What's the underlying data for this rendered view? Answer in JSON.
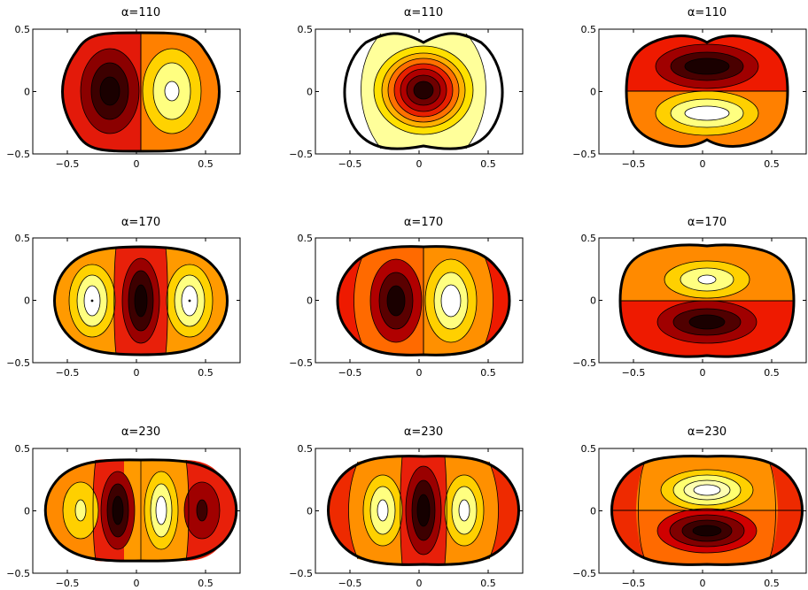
{
  "figure": {
    "panels": [
      {
        "id": "r1c1",
        "title": "α=110"
      },
      {
        "id": "r1c2",
        "title": "α=110"
      },
      {
        "id": "r1c3",
        "title": "α=110"
      },
      {
        "id": "r2c1",
        "title": "α=170"
      },
      {
        "id": "r2c2",
        "title": "α=170"
      },
      {
        "id": "r2c3",
        "title": "α=170"
      },
      {
        "id": "r3c1",
        "title": "α=230"
      },
      {
        "id": "r3c2",
        "title": "α=230"
      },
      {
        "id": "r3c3",
        "title": "α=230"
      }
    ]
  },
  "chart_data": [
    {
      "type": "heatmap",
      "title": "α=110",
      "xticks": [
        "−0.5",
        "0",
        "0.5"
      ],
      "yticks": [
        "0.5",
        "0",
        "−0.5"
      ],
      "xlim": [
        -0.75,
        0.75
      ],
      "ylim": [
        -0.5,
        0.5
      ],
      "colormap": "hot",
      "lobes": [
        {
          "x": -0.25,
          "y": 0,
          "sign": -1
        },
        {
          "x": 0.25,
          "y": 0,
          "sign": 1
        }
      ]
    },
    {
      "type": "heatmap",
      "title": "α=110",
      "xticks": [
        "−0.5",
        "0",
        "0.5"
      ],
      "yticks": [
        "0.5",
        "0",
        "−0.5"
      ],
      "xlim": [
        -0.75,
        0.75
      ],
      "ylim": [
        -0.5,
        0.5
      ],
      "colormap": "hot",
      "lobes": [
        {
          "x": 0,
          "y": 0,
          "sign": -1
        }
      ]
    },
    {
      "type": "heatmap",
      "title": "α=110",
      "xticks": [
        "−0.5",
        "0",
        "0.5"
      ],
      "yticks": [
        "0.5",
        "0",
        "−0.5"
      ],
      "xlim": [
        -0.75,
        0.75
      ],
      "ylim": [
        -0.5,
        0.5
      ],
      "colormap": "hot",
      "lobes": [
        {
          "x": 0,
          "y": 0.18,
          "sign": -1
        },
        {
          "x": 0,
          "y": -0.18,
          "sign": 1
        }
      ]
    },
    {
      "type": "heatmap",
      "title": "α=170",
      "xticks": [
        "−0.5",
        "0",
        "0.5"
      ],
      "yticks": [
        "0.5",
        "0",
        "−0.5"
      ],
      "xlim": [
        -0.75,
        0.75
      ],
      "ylim": [
        -0.5,
        0.5
      ],
      "colormap": "hot",
      "lobes": [
        {
          "x": -0.38,
          "y": 0,
          "sign": 1
        },
        {
          "x": 0,
          "y": 0,
          "sign": -1
        },
        {
          "x": 0.38,
          "y": 0,
          "sign": 1
        }
      ]
    },
    {
      "type": "heatmap",
      "title": "α=170",
      "xticks": [
        "−0.5",
        "0",
        "0.5"
      ],
      "yticks": [
        "0.5",
        "0",
        "−0.5"
      ],
      "xlim": [
        -0.75,
        0.75
      ],
      "ylim": [
        -0.5,
        0.5
      ],
      "colormap": "hot",
      "lobes": [
        {
          "x": -0.2,
          "y": 0,
          "sign": -1
        },
        {
          "x": 0.2,
          "y": 0,
          "sign": 1
        }
      ]
    },
    {
      "type": "heatmap",
      "title": "α=170",
      "xticks": [
        "−0.5",
        "0",
        "0.5"
      ],
      "yticks": [
        "0.5",
        "0",
        "−0.5"
      ],
      "xlim": [
        -0.75,
        0.75
      ],
      "ylim": [
        -0.5,
        0.5
      ],
      "colormap": "hot",
      "lobes": [
        {
          "x": 0,
          "y": 0.17,
          "sign": 1
        },
        {
          "x": 0,
          "y": -0.17,
          "sign": -1
        }
      ]
    },
    {
      "type": "heatmap",
      "title": "α=230",
      "xticks": [
        "−0.5",
        "0",
        "0.5"
      ],
      "yticks": [
        "0.5",
        "0",
        "−0.5"
      ],
      "xlim": [
        -0.75,
        0.75
      ],
      "ylim": [
        -0.5,
        0.5
      ],
      "colormap": "hot",
      "lobes": [
        {
          "x": -0.47,
          "y": 0,
          "sign": 1
        },
        {
          "x": -0.17,
          "y": 0,
          "sign": -1
        },
        {
          "x": 0.17,
          "y": 0,
          "sign": 1
        },
        {
          "x": 0.47,
          "y": 0,
          "sign": -1
        }
      ]
    },
    {
      "type": "heatmap",
      "title": "α=230",
      "xticks": [
        "−0.5",
        "0",
        "0.5"
      ],
      "yticks": [
        "0.5",
        "0",
        "−0.5"
      ],
      "xlim": [
        -0.75,
        0.75
      ],
      "ylim": [
        -0.5,
        0.5
      ],
      "colormap": "hot",
      "lobes": [
        {
          "x": -0.33,
          "y": 0,
          "sign": 1
        },
        {
          "x": 0,
          "y": 0,
          "sign": -1
        },
        {
          "x": 0.33,
          "y": 0,
          "sign": 1
        }
      ]
    },
    {
      "type": "heatmap",
      "title": "α=230",
      "xticks": [
        "−0.5",
        "0",
        "0.5"
      ],
      "yticks": [
        "0.5",
        "0",
        "−0.5"
      ],
      "xlim": [
        -0.75,
        0.75
      ],
      "ylim": [
        -0.5,
        0.5
      ],
      "colormap": "hot",
      "lobes": [
        {
          "x": 0,
          "y": 0.17,
          "sign": 1
        },
        {
          "x": 0,
          "y": -0.17,
          "sign": -1
        }
      ]
    }
  ]
}
